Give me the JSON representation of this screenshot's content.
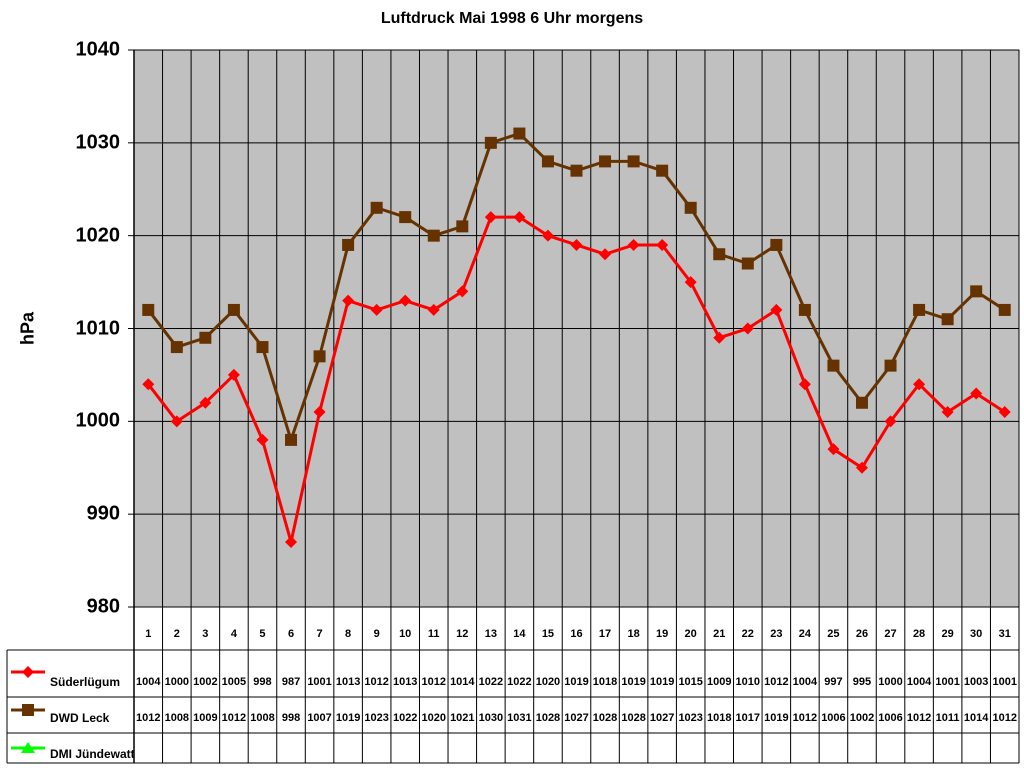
{
  "chart_data": {
    "type": "line",
    "title": "Luftdruck Mai 1998 6 Uhr morgens",
    "xlabel": "",
    "ylabel": "hPa",
    "ylim": [
      980,
      1040
    ],
    "yticks": [
      980,
      990,
      1000,
      1010,
      1020,
      1030,
      1040
    ],
    "grid": true,
    "legend_position": "data-table-left",
    "categories": [
      "1",
      "2",
      "3",
      "4",
      "5",
      "6",
      "7",
      "8",
      "9",
      "10",
      "11",
      "12",
      "13",
      "14",
      "15",
      "16",
      "17",
      "18",
      "19",
      "20",
      "21",
      "22",
      "23",
      "24",
      "25",
      "26",
      "27",
      "28",
      "29",
      "30",
      "31"
    ],
    "series": [
      {
        "name": "Süderlügum",
        "color": "#ff0000",
        "marker": "diamond",
        "values": [
          1004,
          1000,
          1002,
          1005,
          998,
          987,
          1001,
          1013,
          1012,
          1013,
          1012,
          1014,
          1022,
          1022,
          1020,
          1019,
          1018,
          1019,
          1019,
          1015,
          1009,
          1010,
          1012,
          1004,
          997,
          995,
          1000,
          1004,
          1001,
          1003,
          1001
        ]
      },
      {
        "name": "DWD Leck",
        "color": "#663300",
        "marker": "square",
        "values": [
          1012,
          1008,
          1009,
          1012,
          1008,
          998,
          1007,
          1019,
          1023,
          1022,
          1020,
          1021,
          1030,
          1031,
          1028,
          1027,
          1028,
          1028,
          1027,
          1023,
          1018,
          1017,
          1019,
          1012,
          1006,
          1002,
          1006,
          1012,
          1011,
          1014,
          1012
        ]
      },
      {
        "name": "DMI Jündewatt",
        "color": "#00ff00",
        "marker": "triangle",
        "values": []
      }
    ]
  },
  "colors": {
    "plot_bg": "#c0c0c0",
    "grid": "#000000"
  }
}
